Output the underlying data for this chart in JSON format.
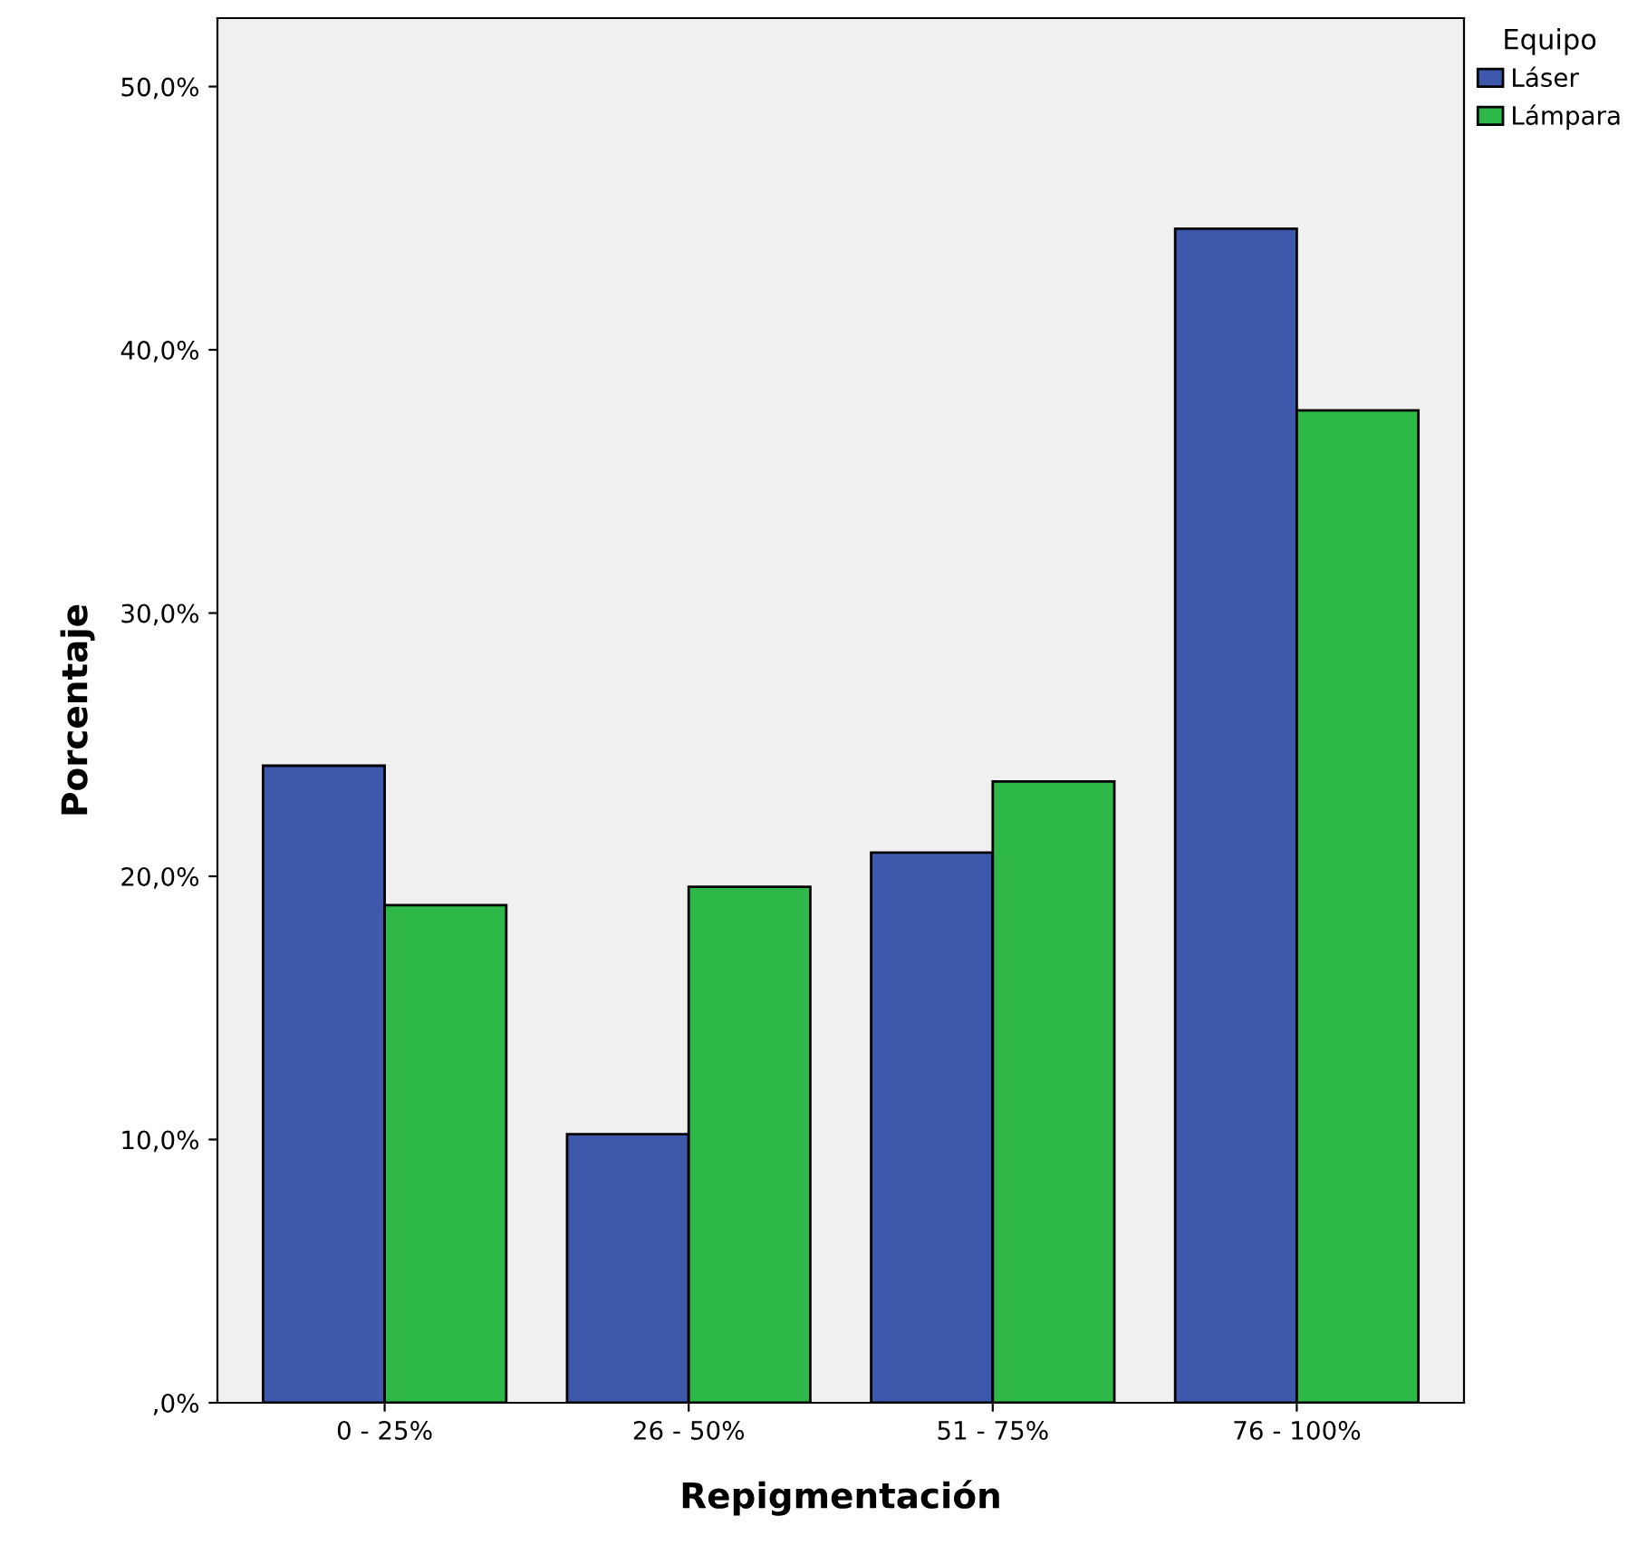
{
  "chart_data": {
    "type": "bar",
    "xlabel": "Repigmentación",
    "ylabel": "Porcentaje",
    "legend_title": "Equipo",
    "categories": [
      "0 - 25%",
      "26 - 50%",
      "51 - 75%",
      "76 - 100%"
    ],
    "series": [
      {
        "name": "Láser",
        "color": "#3e58ac",
        "values": [
          24.2,
          10.2,
          20.9,
          44.6
        ]
      },
      {
        "name": "Lámpara",
        "color": "#2eb848",
        "values": [
          18.9,
          19.6,
          23.6,
          37.7
        ]
      }
    ],
    "ylim": [
      0,
      52.6
    ],
    "yticks": [
      {
        "value": 0,
        "label": ",0%"
      },
      {
        "value": 10,
        "label": "10,0%"
      },
      {
        "value": 20,
        "label": "20,0%"
      },
      {
        "value": 30,
        "label": "30,0%"
      },
      {
        "value": 40,
        "label": "40,0%"
      },
      {
        "value": 50,
        "label": "50,0%"
      }
    ],
    "grid": false,
    "legend": "top right"
  }
}
